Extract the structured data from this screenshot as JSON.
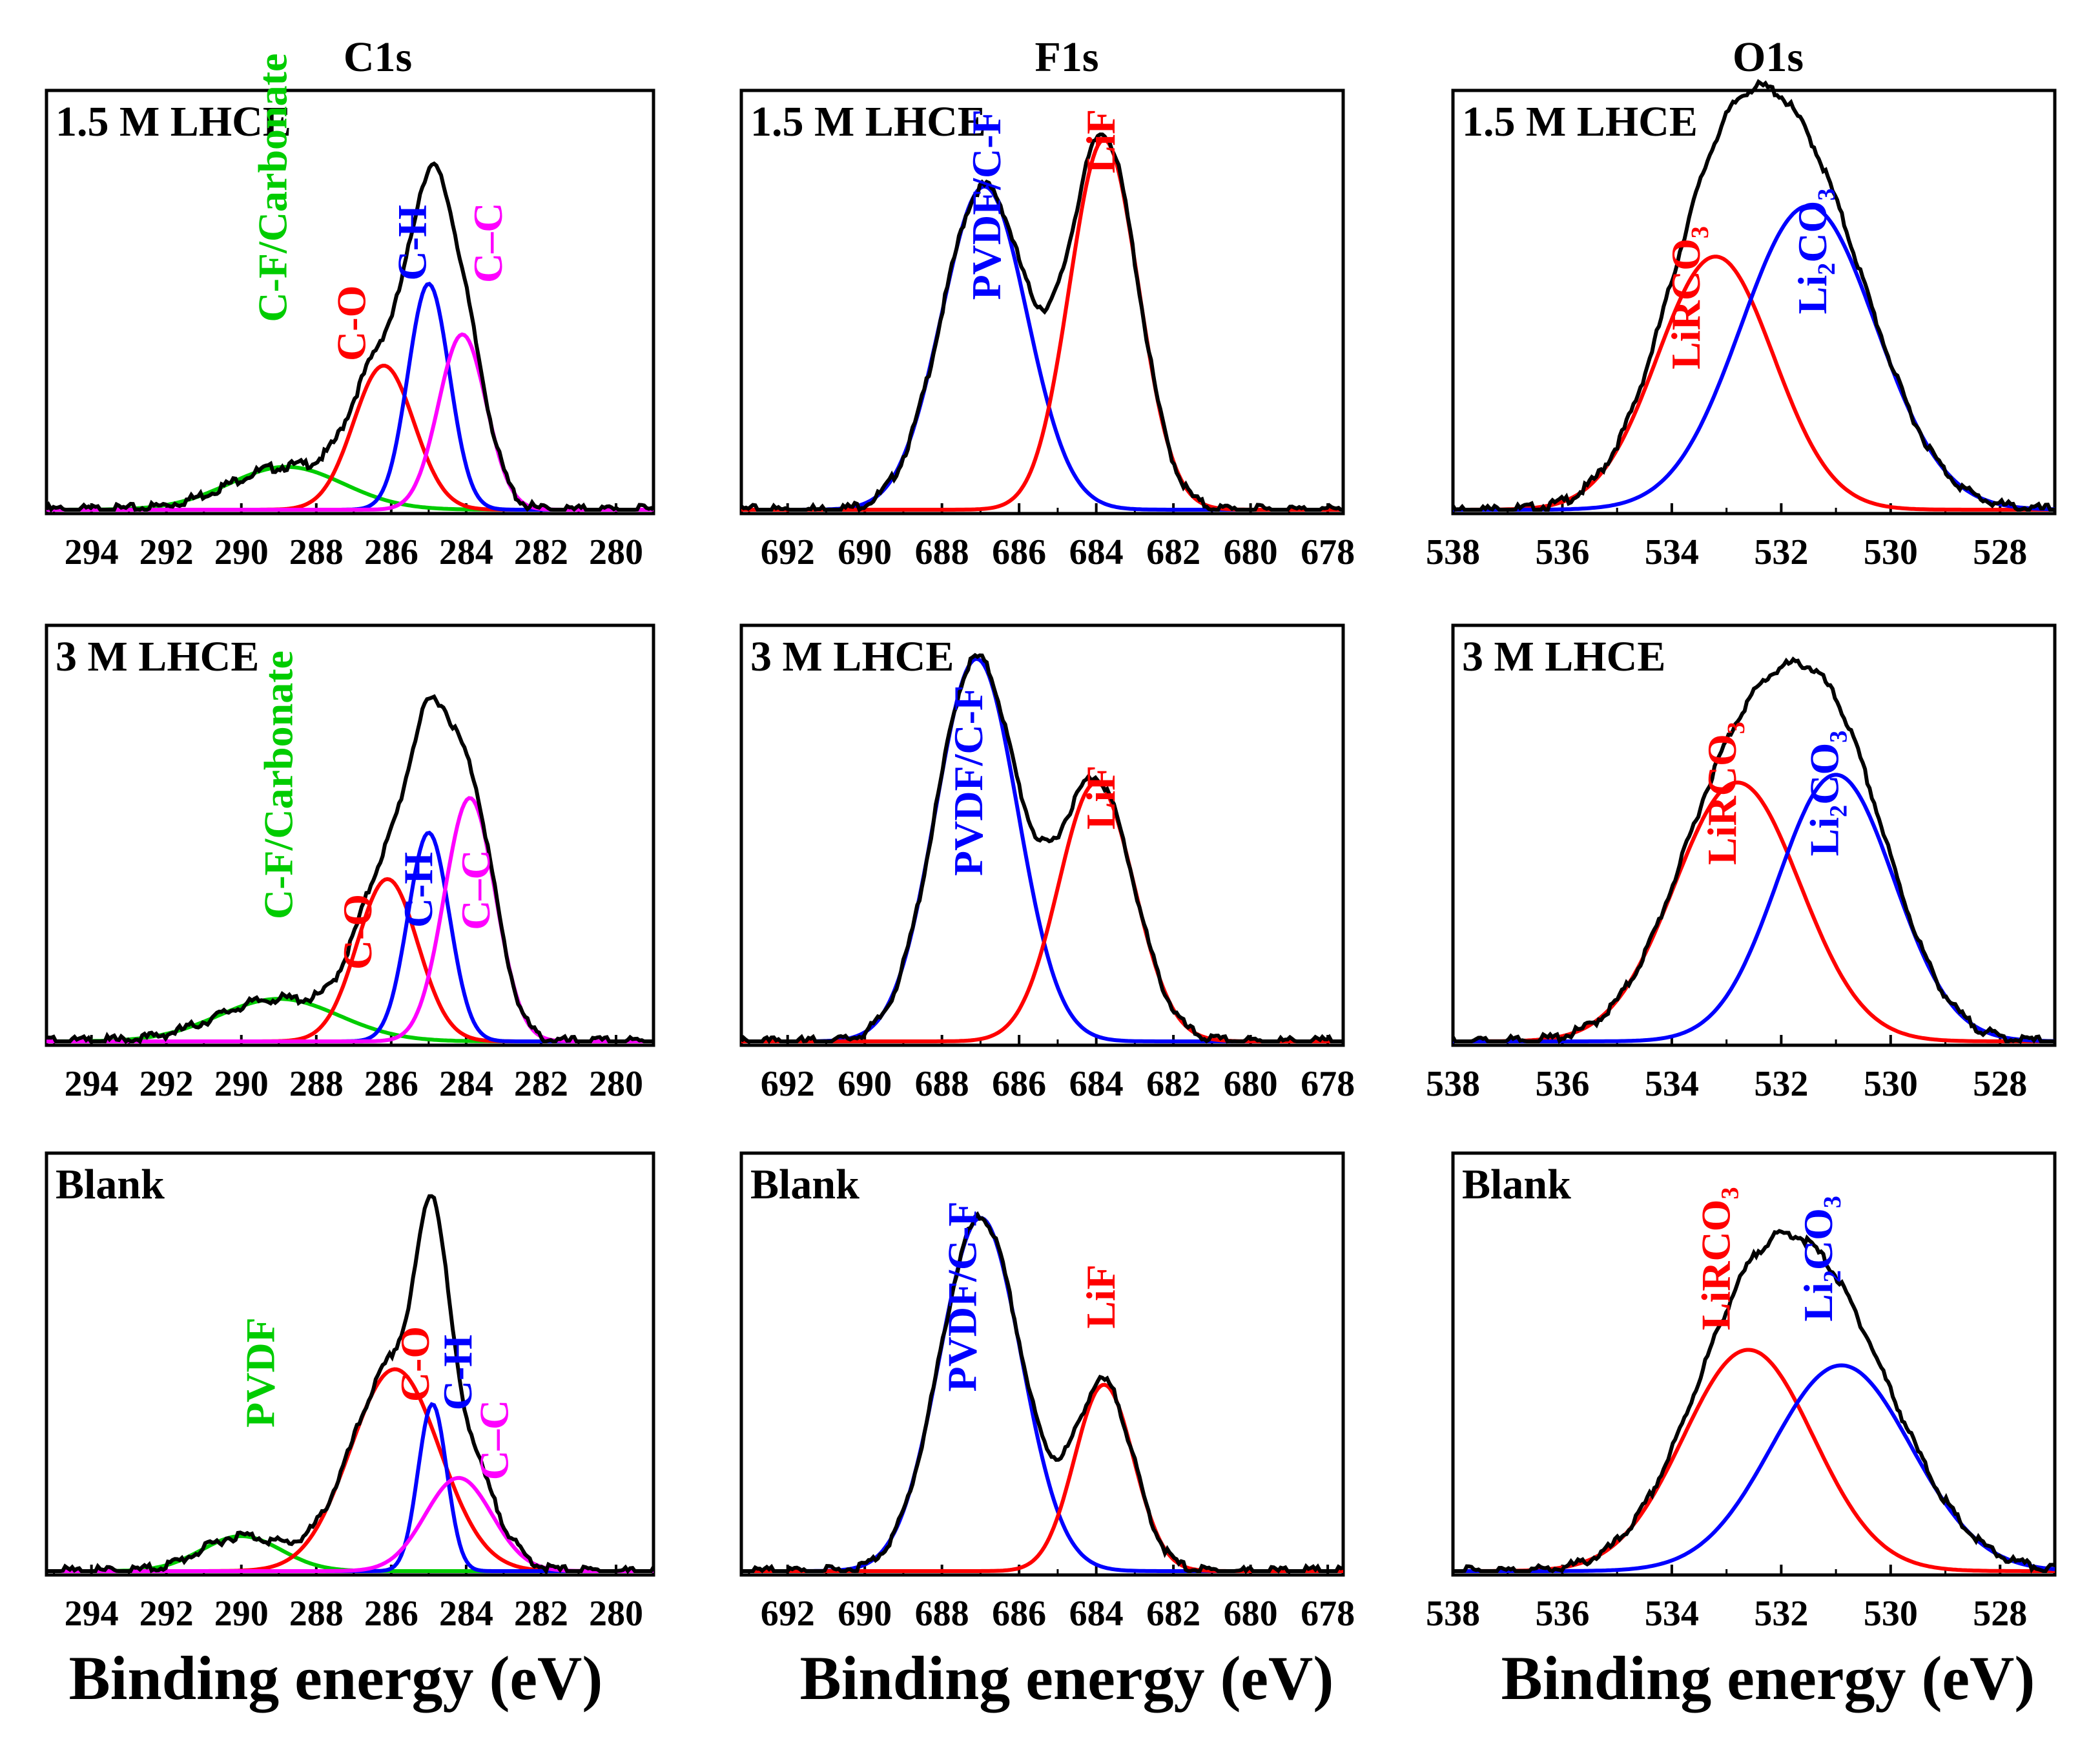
{
  "colors": {
    "exp": "#000000",
    "red": "#ff0000",
    "blue": "#0000ff",
    "green": "#00cc00",
    "magenta": "#ff00ff"
  },
  "columns": [
    {
      "key": "c1s",
      "header": "C1s",
      "ticks": [
        "294",
        "292",
        "290",
        "288",
        "286",
        "284",
        "282",
        "280"
      ]
    },
    {
      "key": "f1s",
      "header": "F1s",
      "ticks": [
        "692",
        "690",
        "688",
        "686",
        "684",
        "682",
        "680",
        "678"
      ]
    },
    {
      "key": "o1s",
      "header": "O1s",
      "ticks": [
        "538",
        "536",
        "534",
        "532",
        "530",
        "528"
      ]
    }
  ],
  "xlabel": "Binding energy (eV)",
  "samples": [
    "1.5 M LHCE",
    "3 M LHCE",
    "Blank"
  ],
  "chart_data": [
    {
      "type": "line",
      "element": "C1s",
      "sample": "1.5 M LHCE",
      "x_range": [
        295.2,
        279.0
      ],
      "y_range": [
        0,
        1.05
      ],
      "components": [
        {
          "name": "C-F/Carbonate",
          "color": "green",
          "center": 288.8,
          "height": 0.11,
          "fwhm": 3.6
        },
        {
          "name": "C-O",
          "color": "red",
          "center": 286.2,
          "height": 0.37,
          "fwhm": 1.9
        },
        {
          "name": "C-H",
          "color": "blue",
          "center": 285.0,
          "height": 0.58,
          "fwhm": 1.3
        },
        {
          "name": "C–C",
          "color": "magenta",
          "center": 284.1,
          "height": 0.45,
          "fwhm": 1.5
        }
      ]
    },
    {
      "type": "line",
      "element": "F1s",
      "sample": "1.5 M LHCE",
      "x_range": [
        693.2,
        677.6
      ],
      "y_range": [
        0,
        1.05
      ],
      "components": [
        {
          "name": "PVDF/C-F",
          "color": "blue",
          "center": 686.9,
          "height": 0.83,
          "fwhm": 2.6
        },
        {
          "name": "LiF",
          "color": "red",
          "center": 683.8,
          "height": 0.95,
          "fwhm": 2.1
        }
      ]
    },
    {
      "type": "line",
      "element": "O1s",
      "sample": "1.5 M LHCE",
      "x_range": [
        538.0,
        527.0
      ],
      "y_range": [
        0,
        1.05
      ],
      "components": [
        {
          "name": "LiRCO₃",
          "color": "red",
          "center": 533.2,
          "height": 0.65,
          "fwhm": 2.5
        },
        {
          "name": "Li₂CO₃",
          "color": "blue",
          "center": 531.5,
          "height": 0.78,
          "fwhm": 2.9
        }
      ]
    },
    {
      "type": "line",
      "element": "C1s",
      "sample": "3 M LHCE",
      "x_range": [
        295.2,
        279.0
      ],
      "y_range": [
        0,
        1.05
      ],
      "components": [
        {
          "name": "C-F/Carbonate",
          "color": "green",
          "center": 289.0,
          "height": 0.11,
          "fwhm": 3.8
        },
        {
          "name": "C-O",
          "color": "red",
          "center": 286.1,
          "height": 0.42,
          "fwhm": 1.9
        },
        {
          "name": "C-H",
          "color": "blue",
          "center": 285.0,
          "height": 0.54,
          "fwhm": 1.3
        },
        {
          "name": "C–C",
          "color": "magenta",
          "center": 283.9,
          "height": 0.63,
          "fwhm": 1.6
        }
      ]
    },
    {
      "type": "line",
      "element": "F1s",
      "sample": "3 M LHCE",
      "x_range": [
        693.2,
        677.6
      ],
      "y_range": [
        0,
        1.05
      ],
      "components": [
        {
          "name": "PVDF/C-F",
          "color": "blue",
          "center": 687.1,
          "height": 0.99,
          "fwhm": 2.5
        },
        {
          "name": "LiF",
          "color": "red",
          "center": 684.0,
          "height": 0.67,
          "fwhm": 2.3
        }
      ]
    },
    {
      "type": "line",
      "element": "O1s",
      "sample": "3 M LHCE",
      "x_range": [
        538.0,
        527.0
      ],
      "y_range": [
        0,
        1.05
      ],
      "components": [
        {
          "name": "LiRCO₃",
          "color": "red",
          "center": 532.8,
          "height": 0.67,
          "fwhm": 2.7
        },
        {
          "name": "Li₂CO₃",
          "color": "blue",
          "center": 531.0,
          "height": 0.69,
          "fwhm": 2.5
        }
      ]
    },
    {
      "type": "line",
      "element": "C1s",
      "sample": "Blank",
      "x_range": [
        295.2,
        279.0
      ],
      "y_range": [
        0,
        1.05
      ],
      "components": [
        {
          "name": "PVDF",
          "color": "green",
          "center": 290.0,
          "height": 0.09,
          "fwhm": 2.5
        },
        {
          "name": "C-O",
          "color": "red",
          "center": 285.9,
          "height": 0.52,
          "fwhm": 2.8
        },
        {
          "name": "C-H",
          "color": "blue",
          "center": 284.9,
          "height": 0.43,
          "fwhm": 0.9
        },
        {
          "name": "C–C",
          "color": "magenta",
          "center": 284.2,
          "height": 0.24,
          "fwhm": 2.1
        }
      ]
    },
    {
      "type": "line",
      "element": "F1s",
      "sample": "Blank",
      "x_range": [
        693.2,
        677.6
      ],
      "y_range": [
        0,
        1.05
      ],
      "components": [
        {
          "name": "PVDF/C-F",
          "color": "blue",
          "center": 687.0,
          "height": 0.91,
          "fwhm": 2.5
        },
        {
          "name": "LiF",
          "color": "red",
          "center": 683.8,
          "height": 0.48,
          "fwhm": 1.8
        }
      ]
    },
    {
      "type": "line",
      "element": "O1s",
      "sample": "Blank",
      "x_range": [
        538.0,
        527.0
      ],
      "y_range": [
        0,
        1.05
      ],
      "components": [
        {
          "name": "LiRCO₃",
          "color": "red",
          "center": 532.6,
          "height": 0.57,
          "fwhm": 2.8
        },
        {
          "name": "Li₂CO₃",
          "color": "blue",
          "center": 530.9,
          "height": 0.53,
          "fwhm": 3.0
        }
      ]
    }
  ]
}
